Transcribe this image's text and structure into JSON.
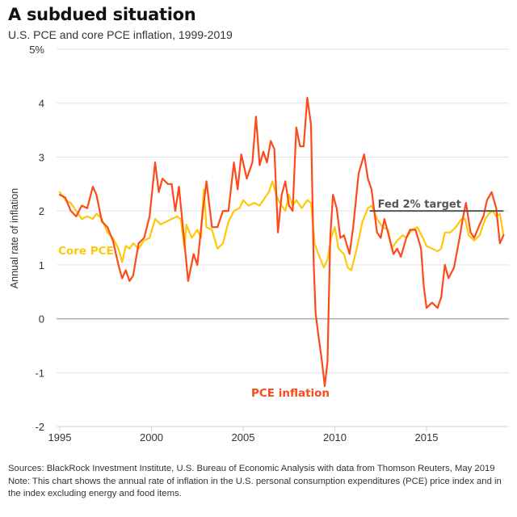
{
  "header": {
    "title": "A subdued situation",
    "subtitle": "U.S. PCE and core PCE inflation, 1999-2019"
  },
  "footnote": {
    "sources": "Sources: BlackRock Investment Institute, U.S. Bureau of Economic Analysis with data from Thomson Reuters, May 2019",
    "note": "Note: This chart shows the annual rate of inflation in the U.S. personal consumption expenditures (PCE) price index and in the index excluding energy and food items."
  },
  "colors": {
    "pce": "#fc4a1a",
    "core_pce": "#ffc80a",
    "target": "#555555",
    "grid": "#e3e3e3",
    "zero_line": "#aaaaaa",
    "x_axis": "#c8d3e6"
  },
  "chart_data": {
    "type": "line",
    "title": "A subdued situation",
    "subtitle": "U.S. PCE and core PCE inflation, 1999-2019",
    "xlabel": "",
    "ylabel": "Annual rate of inflation",
    "xlim": [
      1995,
      2019.4
    ],
    "ylim": [
      -2,
      5
    ],
    "x_ticks": [
      1995,
      2000,
      2005,
      2010,
      2015
    ],
    "x_tick_labels": [
      "1995",
      "2000",
      "2005",
      "2010",
      "2015"
    ],
    "y_ticks": [
      -2,
      -1,
      0,
      1,
      2,
      3,
      4,
      5
    ],
    "y_tick_labels": [
      "-2",
      "-1",
      "0",
      "1",
      "2",
      "3",
      "4",
      "5%"
    ],
    "grid": true,
    "legend": "inline labels",
    "annotations": [
      {
        "text": "Fed 2% target",
        "type": "hline",
        "y": 2,
        "x_start": 2011.9,
        "x_end": 2019.2
      }
    ],
    "series": [
      {
        "name": "PCE inflation",
        "label": "PCE inflation",
        "color": "#fc4a1a",
        "x": [
          1995.0,
          1995.3,
          1995.6,
          1995.9,
          1996.2,
          1996.5,
          1996.8,
          1997.0,
          1997.3,
          1997.6,
          1997.9,
          1998.2,
          1998.4,
          1998.6,
          1998.8,
          1999.0,
          1999.3,
          1999.6,
          1999.9,
          2000.2,
          2000.4,
          2000.6,
          2000.9,
          2001.1,
          2001.3,
          2001.5,
          2001.8,
          2002.0,
          2002.3,
          2002.5,
          2002.8,
          2003.0,
          2003.3,
          2003.6,
          2003.9,
          2004.2,
          2004.5,
          2004.7,
          2004.9,
          2005.2,
          2005.5,
          2005.7,
          2005.9,
          2006.1,
          2006.3,
          2006.5,
          2006.7,
          2006.9,
          2007.1,
          2007.3,
          2007.5,
          2007.7,
          2007.9,
          2008.1,
          2008.3,
          2008.5,
          2008.7,
          2008.85,
          2008.95,
          2009.1,
          2009.3,
          2009.45,
          2009.6,
          2009.75,
          2009.9,
          2010.1,
          2010.3,
          2010.5,
          2010.8,
          2011.0,
          2011.3,
          2011.6,
          2011.8,
          2012.0,
          2012.3,
          2012.5,
          2012.7,
          2012.9,
          2013.2,
          2013.4,
          2013.6,
          2013.9,
          2014.1,
          2014.4,
          2014.7,
          2014.85,
          2015.0,
          2015.3,
          2015.6,
          2015.8,
          2016.0,
          2016.2,
          2016.5,
          2016.8,
          2017.0,
          2017.15,
          2017.4,
          2017.6,
          2017.9,
          2018.1,
          2018.3,
          2018.55,
          2018.8,
          2019.0,
          2019.2
        ],
        "values": [
          2.3,
          2.25,
          2.0,
          1.9,
          2.1,
          2.05,
          2.45,
          2.3,
          1.8,
          1.7,
          1.45,
          1.0,
          0.75,
          0.9,
          0.7,
          0.8,
          1.4,
          1.5,
          1.9,
          2.9,
          2.35,
          2.6,
          2.5,
          2.5,
          2.0,
          2.45,
          1.4,
          0.7,
          1.2,
          1.0,
          2.0,
          2.55,
          1.7,
          1.7,
          2.0,
          2.0,
          2.9,
          2.4,
          3.05,
          2.6,
          2.9,
          3.75,
          2.85,
          3.1,
          2.9,
          3.3,
          3.15,
          1.6,
          2.3,
          2.55,
          2.1,
          2.0,
          3.55,
          3.2,
          3.2,
          4.1,
          3.6,
          1.0,
          0.1,
          -0.3,
          -0.8,
          -1.25,
          -0.8,
          1.5,
          2.3,
          2.05,
          1.5,
          1.55,
          1.2,
          1.7,
          2.7,
          3.05,
          2.6,
          2.4,
          1.6,
          1.5,
          1.85,
          1.6,
          1.2,
          1.3,
          1.15,
          1.5,
          1.65,
          1.65,
          1.3,
          0.6,
          0.2,
          0.3,
          0.2,
          0.4,
          1.0,
          0.75,
          0.95,
          1.5,
          1.9,
          2.15,
          1.6,
          1.5,
          1.75,
          1.9,
          2.2,
          2.35,
          2.05,
          1.4,
          1.55
        ]
      },
      {
        "name": "Core PCE",
        "label": "Core PCE",
        "color": "#ffc80a",
        "x": [
          1995.0,
          1995.3,
          1995.6,
          1995.9,
          1996.2,
          1996.5,
          1996.8,
          1997.0,
          1997.3,
          1997.6,
          1997.9,
          1998.2,
          1998.4,
          1998.6,
          1998.8,
          1999.0,
          1999.3,
          1999.6,
          1999.9,
          2000.2,
          2000.5,
          2000.8,
          2001.1,
          2001.4,
          2001.6,
          2001.8,
          2001.9,
          2002.2,
          2002.5,
          2002.7,
          2002.85,
          2003.0,
          2003.3,
          2003.6,
          2003.9,
          2004.2,
          2004.5,
          2004.8,
          2005.0,
          2005.3,
          2005.6,
          2005.9,
          2006.2,
          2006.4,
          2006.6,
          2006.8,
          2007.0,
          2007.3,
          2007.5,
          2007.7,
          2007.9,
          2008.2,
          2008.5,
          2008.7,
          2008.9,
          2009.1,
          2009.4,
          2009.6,
          2009.8,
          2010.0,
          2010.2,
          2010.5,
          2010.7,
          2010.9,
          2011.2,
          2011.5,
          2011.8,
          2012.0,
          2012.3,
          2012.6,
          2012.9,
          2013.1,
          2013.4,
          2013.7,
          2013.9,
          2014.2,
          2014.5,
          2014.8,
          2015.0,
          2015.3,
          2015.6,
          2015.8,
          2016.0,
          2016.3,
          2016.6,
          2016.9,
          2017.1,
          2017.3,
          2017.6,
          2017.9,
          2018.2,
          2018.4,
          2018.6,
          2018.8,
          2019.0,
          2019.2
        ],
        "values": [
          2.35,
          2.2,
          2.15,
          2.0,
          1.85,
          1.9,
          1.85,
          1.95,
          1.85,
          1.6,
          1.5,
          1.3,
          1.05,
          1.35,
          1.3,
          1.4,
          1.3,
          1.45,
          1.5,
          1.85,
          1.75,
          1.8,
          1.85,
          1.9,
          1.85,
          1.3,
          1.75,
          1.5,
          1.65,
          1.5,
          2.4,
          1.7,
          1.65,
          1.3,
          1.4,
          1.8,
          2.0,
          2.05,
          2.2,
          2.1,
          2.15,
          2.1,
          2.25,
          2.35,
          2.55,
          2.3,
          2.15,
          2.0,
          2.3,
          2.1,
          2.2,
          2.05,
          2.2,
          2.15,
          1.4,
          1.2,
          0.95,
          1.1,
          1.5,
          1.7,
          1.3,
          1.2,
          0.95,
          0.9,
          1.3,
          1.8,
          2.05,
          2.1,
          1.85,
          1.7,
          1.65,
          1.3,
          1.45,
          1.55,
          1.5,
          1.65,
          1.7,
          1.5,
          1.35,
          1.3,
          1.25,
          1.3,
          1.6,
          1.6,
          1.7,
          1.85,
          1.85,
          1.55,
          1.45,
          1.55,
          1.85,
          1.95,
          2.0,
          1.9,
          1.95,
          1.55
        ]
      }
    ]
  }
}
